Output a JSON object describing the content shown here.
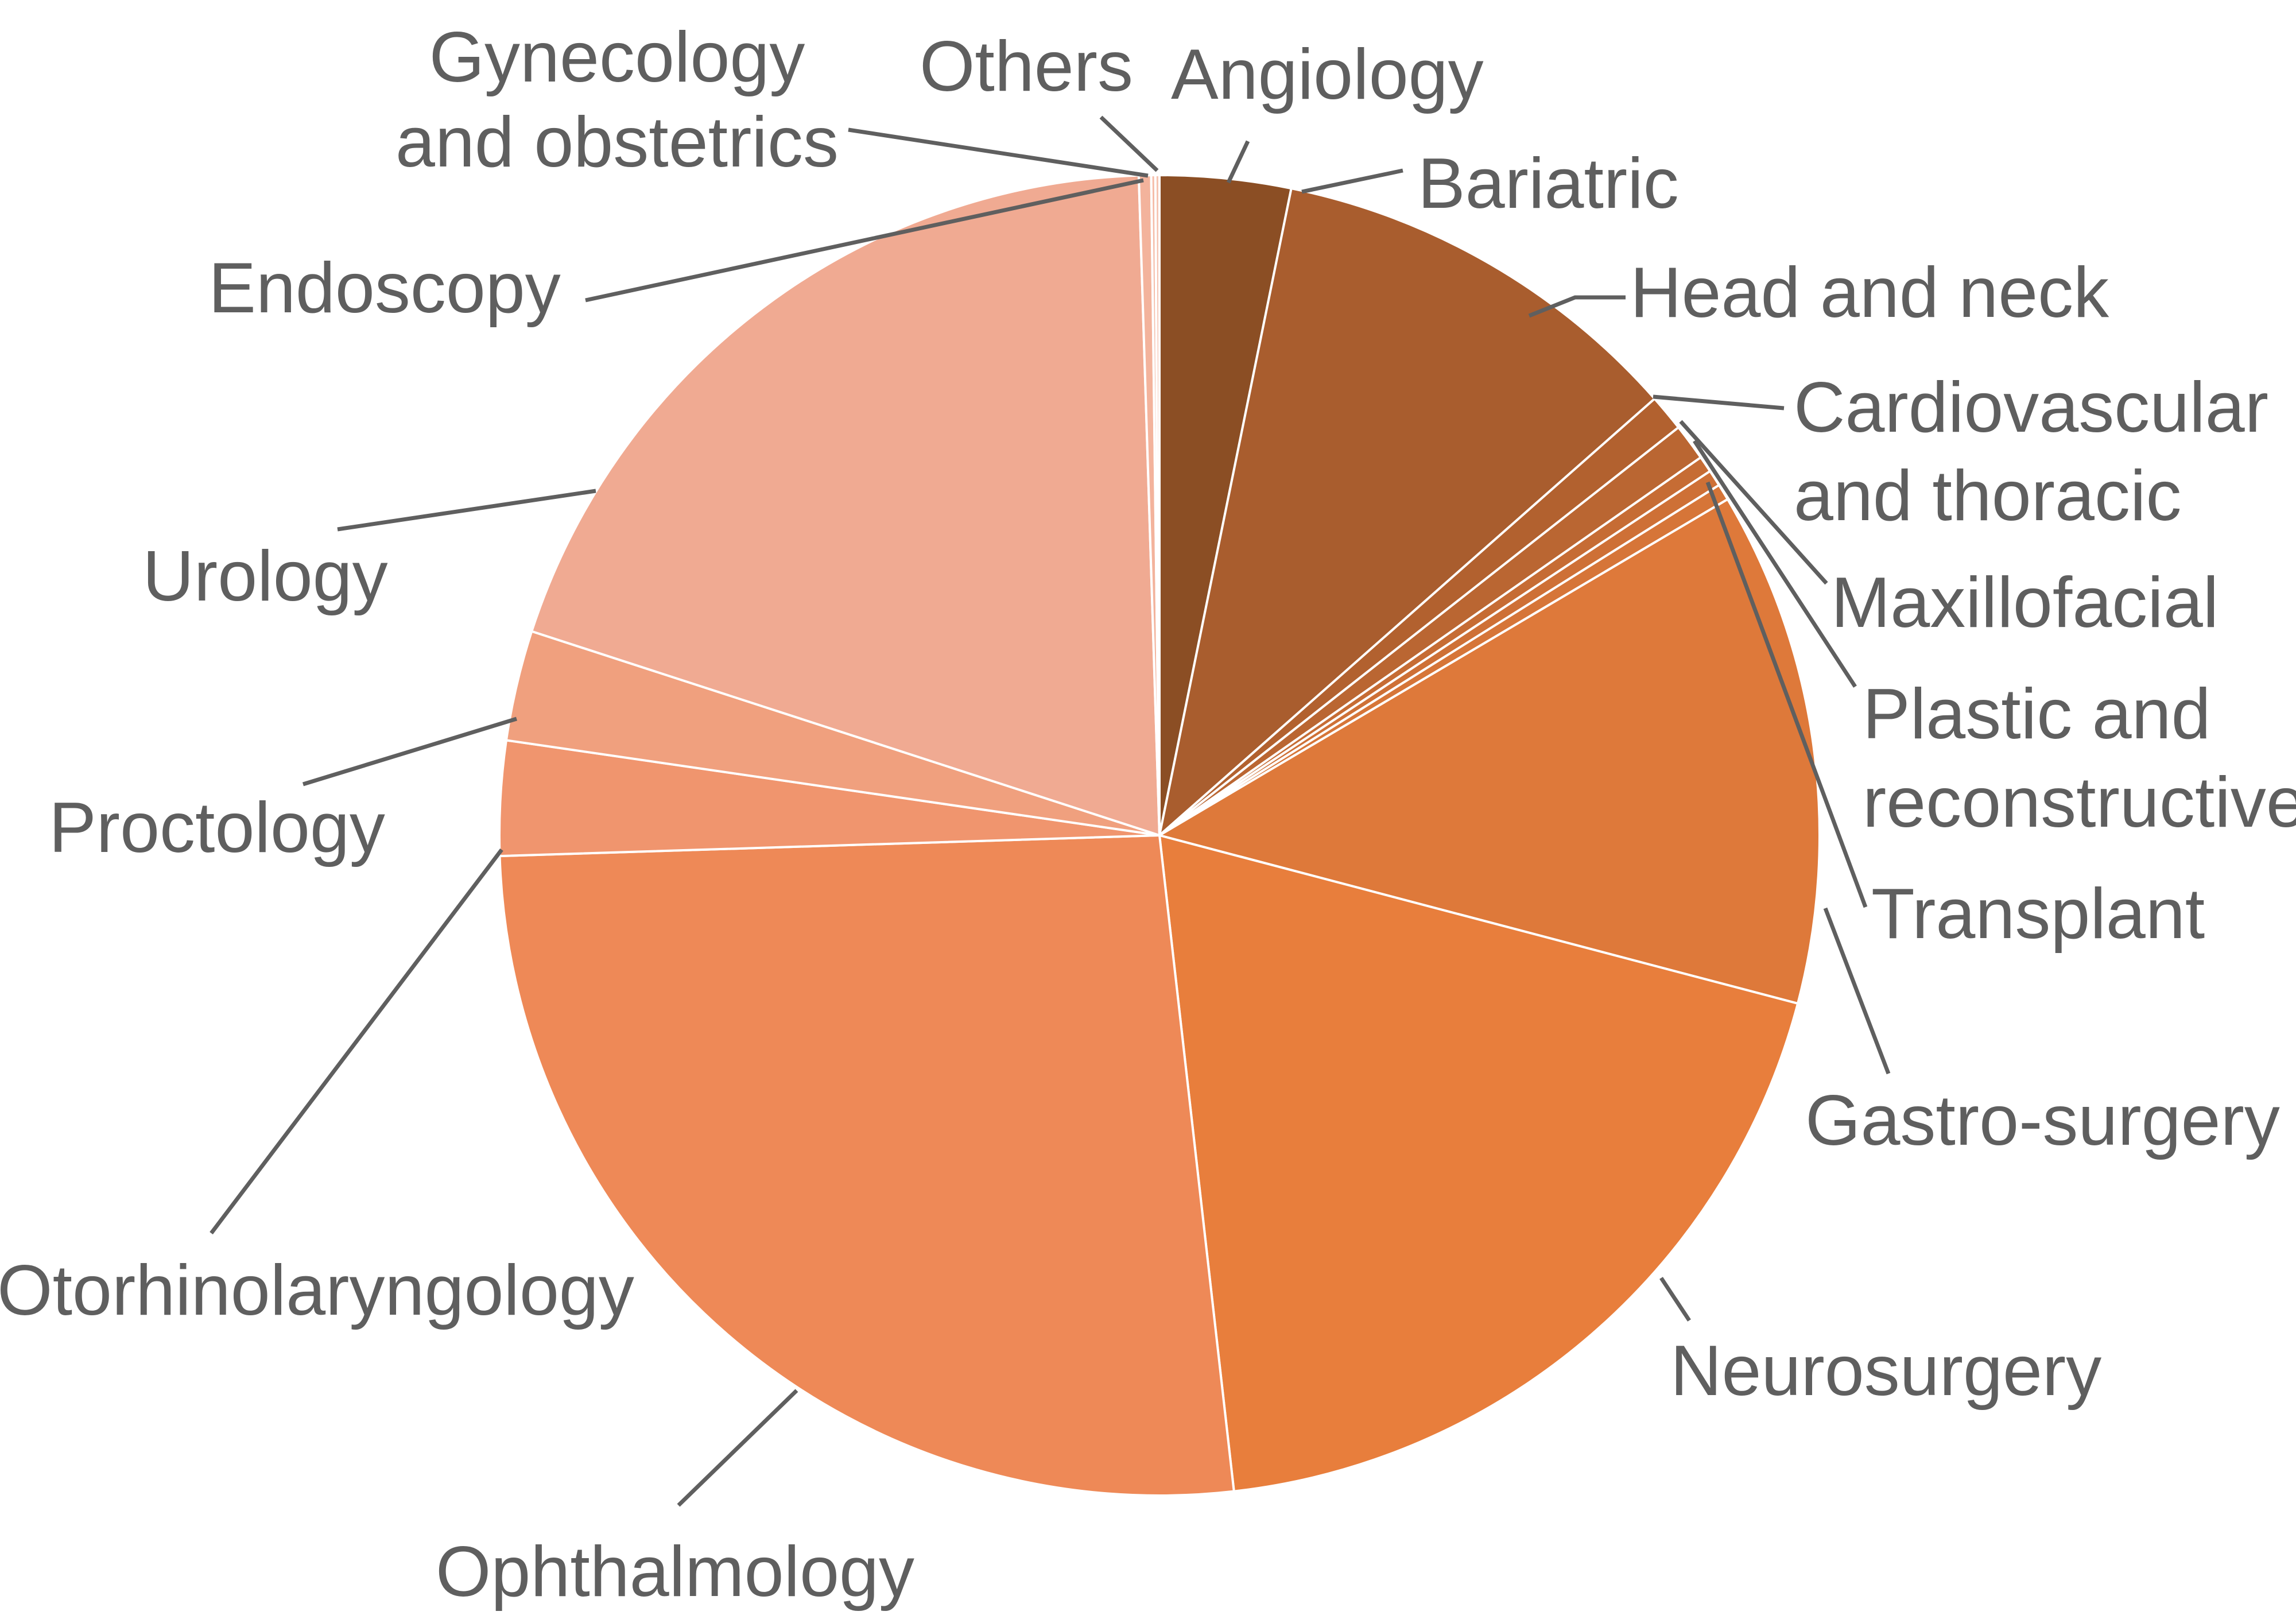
{
  "chart_data": {
    "type": "pie",
    "title": "",
    "slices": [
      {
        "label": "Angiology",
        "value": 3.2,
        "color": "#8B4E24"
      },
      {
        "label": "Bariatric",
        "value": 10.3,
        "color": "#A95D2E"
      },
      {
        "label": "Head and neck",
        "value": 0.9,
        "color": "#B2612F"
      },
      {
        "label": "Cardiovascular and thoracic",
        "value": 0.9,
        "color": "#BA6632"
      },
      {
        "label": "Maxillofacial",
        "value": 0.4,
        "color": "#C66C34"
      },
      {
        "label": "Plastic and reconstructive",
        "value": 0.4,
        "color": "#CE7036"
      },
      {
        "label": "Transplant",
        "value": 0.4,
        "color": "#D67538"
      },
      {
        "label": "Gastro-surgery",
        "value": 12.6,
        "color": "#DE793A"
      },
      {
        "label": "Neurosurgery",
        "value": 19.1,
        "color": "#E87E3C"
      },
      {
        "label": "Ophthalmology",
        "value": 26.3,
        "color": "#EE8957"
      },
      {
        "label": "Otorhinolaryngology",
        "value": 2.8,
        "color": "#F0956E"
      },
      {
        "label": "Proctology",
        "value": 2.7,
        "color": "#F0A07E"
      },
      {
        "label": "Urology",
        "value": 19.5,
        "color": "#F0AA92"
      },
      {
        "label": "Endoscopy",
        "value": 0.3,
        "color": "#F3B39C"
      },
      {
        "label": "Gynecology and obstetrics",
        "value": 0.1,
        "color": "#F5BCA8"
      },
      {
        "label": "Others",
        "value": 0.1,
        "color": "#F6C4B2"
      }
    ],
    "label_color": "#5F5F5F",
    "leader_color": "#5F5F5F",
    "slice_border_color": "#FFFFFF"
  }
}
